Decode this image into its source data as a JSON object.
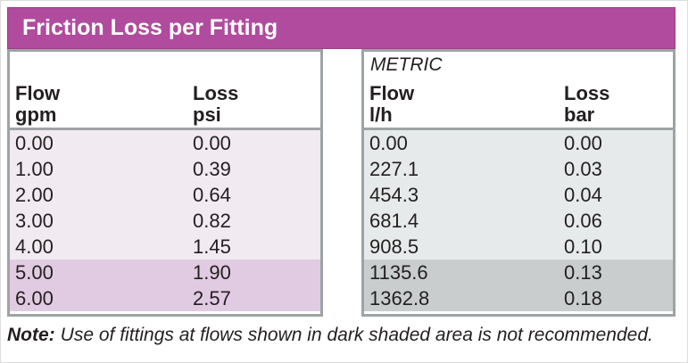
{
  "title_bar": {
    "title": "Friction Loss per Fitting"
  },
  "imperial_table": {
    "headers": {
      "col1_name": "Flow",
      "col1_unit": "gpm",
      "col2_name": "Loss",
      "col2_unit": "psi"
    },
    "rows": [
      {
        "flow": "0.00",
        "loss": "0.00",
        "dark": false
      },
      {
        "flow": "1.00",
        "loss": "0.39",
        "dark": false
      },
      {
        "flow": "2.00",
        "loss": "0.64",
        "dark": false
      },
      {
        "flow": "3.00",
        "loss": "0.82",
        "dark": false
      },
      {
        "flow": "4.00",
        "loss": "1.45",
        "dark": false
      },
      {
        "flow": "5.00",
        "loss": "1.90",
        "dark": true
      },
      {
        "flow": "6.00",
        "loss": "2.57",
        "dark": true
      }
    ]
  },
  "metric_table": {
    "label": "METRIC",
    "headers": {
      "col1_name": "Flow",
      "col1_unit": "l/h",
      "col2_name": "Loss",
      "col2_unit": "bar"
    },
    "rows": [
      {
        "flow": "0.00",
        "loss": "0.00",
        "dark": false
      },
      {
        "flow": "227.1",
        "loss": "0.03",
        "dark": false
      },
      {
        "flow": "454.3",
        "loss": "0.04",
        "dark": false
      },
      {
        "flow": "681.4",
        "loss": "0.06",
        "dark": false
      },
      {
        "flow": "908.5",
        "loss": "0.10",
        "dark": false
      },
      {
        "flow": "1135.6",
        "loss": "0.13",
        "dark": true
      },
      {
        "flow": "1362.8",
        "loss": "0.18",
        "dark": true
      }
    ]
  },
  "note": {
    "label": "Note:",
    "text": "Use of fittings at flows shown in dark shaded area is not recommended."
  },
  "colors": {
    "header_bar": "#b04b9d",
    "imperial_row_light": "#f1eaf1",
    "imperial_row_dark": "#e1cbe2",
    "metric_row_light": "#e7eaea",
    "metric_row_dark": "#c9cdce",
    "table_border": "#9ea3a5"
  }
}
